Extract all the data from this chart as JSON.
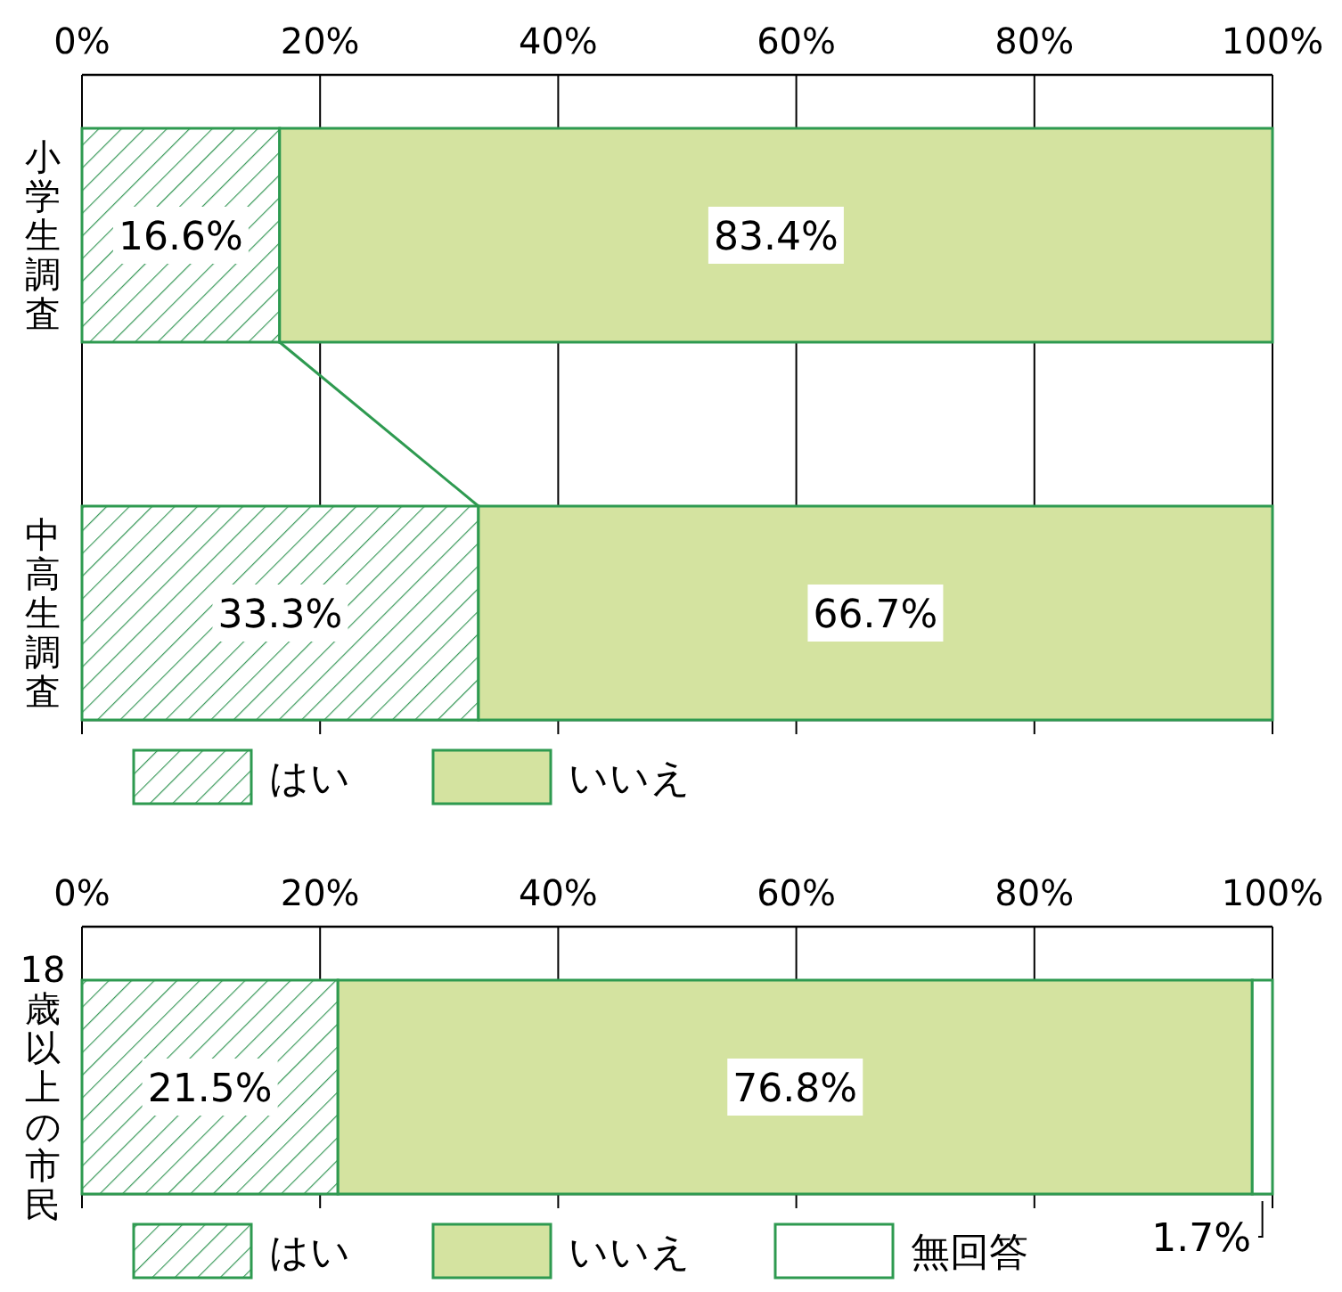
{
  "chart_data": [
    {
      "type": "bar",
      "orientation": "horizontal",
      "stacked": true,
      "categories": [
        "小学生調査",
        "中高生調査"
      ],
      "xlim": [
        0,
        100
      ],
      "xticks": [
        {
          "value": 0,
          "label": "0%"
        },
        {
          "value": 20,
          "label": "20%"
        },
        {
          "value": 40,
          "label": "40%"
        },
        {
          "value": 60,
          "label": "60%"
        },
        {
          "value": 80,
          "label": "80%"
        },
        {
          "value": 100,
          "label": "100%"
        }
      ],
      "grid": "x",
      "legend": "bottom",
      "series": [
        {
          "name": "はい",
          "color": "#3a9a5a",
          "values": [
            16.6,
            33.3
          ],
          "value_labels": [
            "16.6%",
            "33.3%"
          ]
        },
        {
          "name": "いいえ",
          "color": "#d4e3a0",
          "values": [
            83.4,
            66.7
          ],
          "value_labels": [
            "83.4%",
            "66.7%"
          ]
        }
      ]
    },
    {
      "type": "bar",
      "orientation": "horizontal",
      "stacked": true,
      "categories": [
        "18歳以上の市民"
      ],
      "xlim": [
        0,
        100
      ],
      "xticks": [
        {
          "value": 0,
          "label": "0%"
        },
        {
          "value": 20,
          "label": "20%"
        },
        {
          "value": 40,
          "label": "40%"
        },
        {
          "value": 60,
          "label": "60%"
        },
        {
          "value": 80,
          "label": "80%"
        },
        {
          "value": 100,
          "label": "100%"
        }
      ],
      "grid": "x",
      "legend": "bottom",
      "series": [
        {
          "name": "はい",
          "color": "#3a9a5a",
          "values": [
            21.5
          ],
          "value_labels": [
            "21.5%"
          ]
        },
        {
          "name": "いいえ",
          "color": "#d4e3a0",
          "values": [
            76.8
          ],
          "value_labels": [
            "76.8%"
          ]
        },
        {
          "name": "無回答",
          "color": "#ffffff",
          "values": [
            1.7
          ],
          "value_labels": [
            "1.7%"
          ]
        }
      ]
    }
  ]
}
